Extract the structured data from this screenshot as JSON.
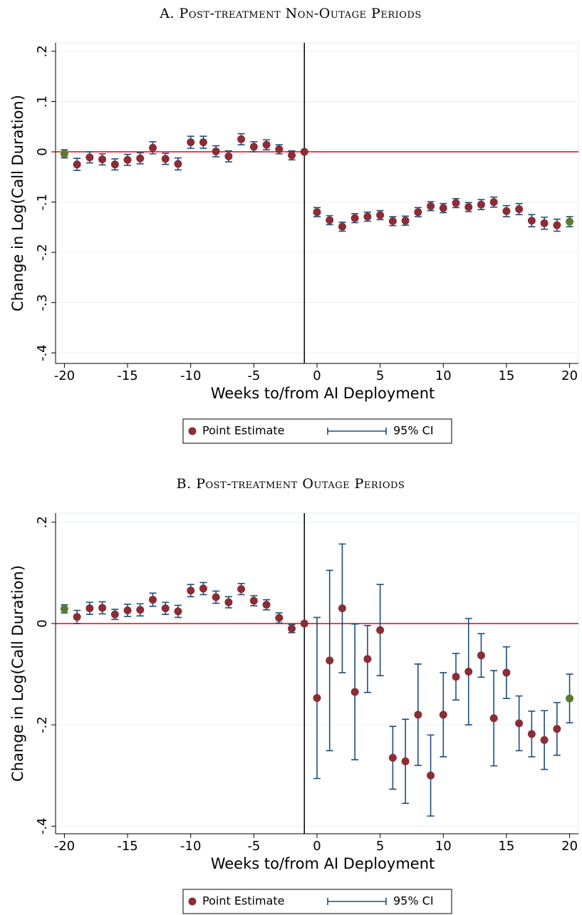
{
  "chart_data": [
    {
      "type": "errorbar",
      "title": "A. Post-treatment Non-Outage Periods",
      "xlabel": "Weeks to/from AI Deployment",
      "ylabel": "Change in Log(Call Duration)",
      "x": [
        -20,
        -19,
        -18,
        -17,
        -16,
        -15,
        -14,
        -13,
        -12,
        -11,
        -10,
        -9,
        -8,
        -7,
        -6,
        -5,
        -4,
        -3,
        -2,
        -1,
        0,
        1,
        2,
        3,
        4,
        5,
        6,
        7,
        8,
        9,
        10,
        11,
        12,
        13,
        14,
        15,
        16,
        17,
        18,
        19,
        20
      ],
      "series": [
        {
          "name": "Point Estimate",
          "color": "#8b2d35",
          "values": [
            -0.004,
            -0.025,
            -0.011,
            -0.015,
            -0.025,
            -0.016,
            -0.013,
            0.008,
            -0.014,
            -0.024,
            0.019,
            0.019,
            0.001,
            -0.009,
            0.025,
            0.01,
            0.014,
            0.005,
            -0.007,
            0,
            -0.12,
            -0.136,
            -0.149,
            -0.132,
            -0.129,
            -0.126,
            -0.138,
            -0.137,
            -0.12,
            -0.108,
            -0.112,
            -0.102,
            -0.11,
            -0.105,
            -0.1,
            -0.118,
            -0.114,
            -0.137,
            -0.142,
            -0.146,
            -0.139
          ]
        }
      ],
      "ci": {
        "name": "95% CI",
        "color": "#1f4e79",
        "errors": [
          0.008,
          0.012,
          0.011,
          0.011,
          0.011,
          0.011,
          0.011,
          0.012,
          0.011,
          0.012,
          0.012,
          0.012,
          0.011,
          0.011,
          0.011,
          0.01,
          0.01,
          0.009,
          0.009,
          null,
          0.009,
          0.009,
          0.009,
          0.009,
          0.009,
          0.009,
          0.009,
          0.009,
          0.009,
          0.009,
          0.009,
          0.009,
          0.009,
          0.01,
          0.01,
          0.011,
          0.011,
          0.012,
          0.012,
          0.012,
          0.01
        ]
      },
      "endpoint_color": "#5b7b2d",
      "hline": 0,
      "hline_color": "#e8001c",
      "vline": -1,
      "xlim": [
        -20.7,
        20.7
      ],
      "xticks": [
        -20,
        -15,
        -10,
        -5,
        0,
        5,
        10,
        15,
        20
      ],
      "ylim": [
        -0.421,
        0.217
      ],
      "yticks": [
        {
          "value": 0.2,
          "label": ".2"
        },
        {
          "value": 0.1,
          "label": ".1"
        },
        0,
        {
          "value": -0.1,
          "label": "-.1"
        },
        {
          "value": -0.2,
          "label": "-.2"
        },
        {
          "value": -0.3,
          "label": "-.3"
        },
        {
          "value": -0.4,
          "label": "-.4"
        }
      ],
      "grid": true
    },
    {
      "type": "errorbar",
      "title": "B. Post-treatment Outage Periods",
      "xlabel": "Weeks to/from AI Deployment",
      "ylabel": "Change in Log(Call Duration)",
      "x": [
        -20,
        -19,
        -18,
        -17,
        -16,
        -15,
        -14,
        -13,
        -12,
        -11,
        -10,
        -9,
        -8,
        -7,
        -6,
        -5,
        -4,
        -3,
        -2,
        -1,
        0,
        1,
        2,
        3,
        4,
        5,
        6,
        7,
        8,
        9,
        10,
        11,
        12,
        13,
        14,
        15,
        16,
        17,
        18,
        19,
        20
      ],
      "series": [
        {
          "name": "Point Estimate",
          "color": "#8b2d35",
          "values": [
            0.029,
            0.013,
            0.03,
            0.031,
            0.018,
            0.026,
            0.027,
            0.047,
            0.03,
            0.024,
            0.065,
            0.069,
            0.052,
            0.042,
            0.068,
            0.045,
            0.037,
            0.011,
            -0.01,
            0,
            -0.147,
            -0.073,
            0.03,
            -0.135,
            -0.07,
            -0.013,
            -0.265,
            -0.272,
            -0.18,
            -0.3,
            -0.18,
            -0.105,
            -0.095,
            -0.063,
            -0.187,
            -0.097,
            -0.197,
            -0.218,
            -0.23,
            -0.208,
            -0.148
          ]
        }
      ],
      "ci": {
        "name": "95% CI",
        "color": "#1f4e79",
        "errors": [
          0.008,
          0.013,
          0.012,
          0.012,
          0.01,
          0.012,
          0.012,
          0.013,
          0.012,
          0.012,
          0.012,
          0.012,
          0.012,
          0.011,
          0.011,
          0.01,
          0.01,
          0.01,
          0.008,
          null,
          0.159,
          0.178,
          0.127,
          0.134,
          0.066,
          0.09,
          0.062,
          0.083,
          0.1,
          0.08,
          0.083,
          0.046,
          0.105,
          0.043,
          0.094,
          0.051,
          0.054,
          0.045,
          0.058,
          0.052,
          0.048
        ]
      },
      "endpoint_color": "#5b7b2d",
      "hline": 0,
      "hline_color": "#e8001c",
      "vline": -1,
      "xlim": [
        -20.7,
        20.7
      ],
      "xticks": [
        -20,
        -15,
        -10,
        -5,
        0,
        5,
        10,
        15,
        20
      ],
      "ylim": [
        -0.415,
        0.218
      ],
      "yticks": [
        {
          "value": 0.2,
          "label": ".2"
        },
        0,
        {
          "value": -0.2,
          "label": "-.2"
        },
        {
          "value": -0.4,
          "label": "-.4"
        }
      ],
      "grid": true
    }
  ]
}
